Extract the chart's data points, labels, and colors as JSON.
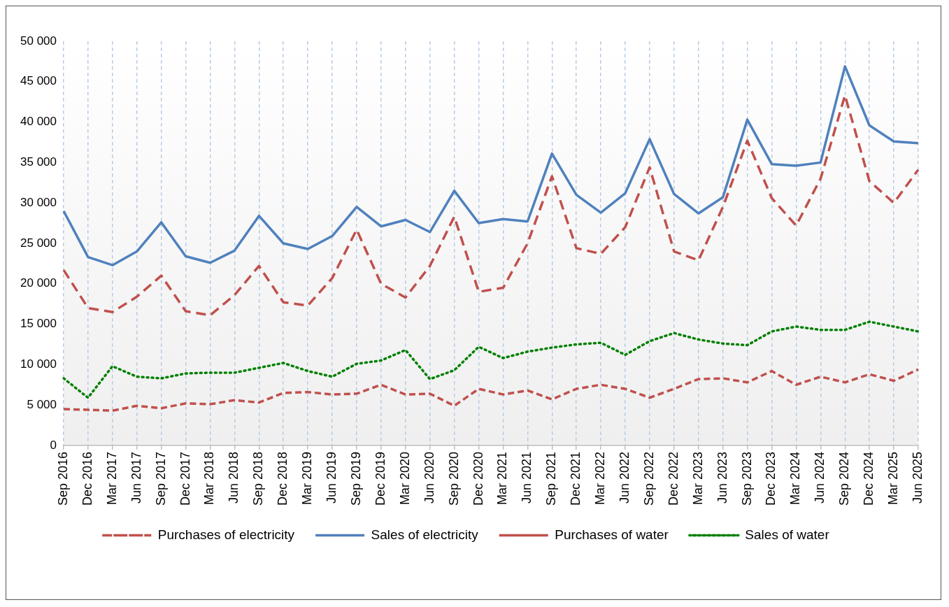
{
  "chart_data": {
    "type": "line",
    "categories": [
      "Sep 2016",
      "Dec 2016",
      "Mar 2017",
      "Jun 2017",
      "Sep 2017",
      "Dec 2017",
      "Mar 2018",
      "Jun 2018",
      "Sep 2018",
      "Dec 2018",
      "Mar 2019",
      "Jun 2019",
      "Sep 2019",
      "Dec 2019",
      "Mar 2020",
      "Jun 2020",
      "Sep 2020",
      "Dec 2020",
      "Mar 2021",
      "Jun 2021",
      "Sep 2021",
      "Dec 2021",
      "Mar 2022",
      "Jun 2022",
      "Sep 2022",
      "Dec 2022",
      "Mar 2023",
      "Jun 2023",
      "Sep 2023",
      "Dec 2023",
      "Mar 2024",
      "Jun 2024",
      "Sep 2024",
      "Dec 2024",
      "Mar 2025",
      "Jun 2025"
    ],
    "series": [
      {
        "name": "Purchases of electricity",
        "color": "#c0504d",
        "line_style": "dashed",
        "values": [
          21700,
          17000,
          16500,
          18400,
          21000,
          16600,
          16100,
          18600,
          22200,
          17700,
          17300,
          20700,
          26700,
          20000,
          18300,
          22200,
          28300,
          19000,
          19500,
          25000,
          33300,
          24400,
          23700,
          27000,
          34400,
          24000,
          22900,
          29500,
          37700,
          30600,
          27200,
          33000,
          43300,
          32700,
          30000,
          34100
        ]
      },
      {
        "name": "Sales of electricity",
        "color": "#4f81bd",
        "line_style": "solid",
        "values": [
          29000,
          23300,
          22300,
          24000,
          27600,
          23400,
          22600,
          24100,
          28400,
          25000,
          24300,
          25900,
          29500,
          27100,
          27900,
          26400,
          31500,
          27500,
          28000,
          27700,
          36100,
          31000,
          28800,
          31200,
          37900,
          31100,
          28700,
          30700,
          40300,
          34800,
          34600,
          35000,
          46900,
          39600,
          37600,
          37400
        ]
      },
      {
        "name": "Purchases of water",
        "color": "#c0504d",
        "line_style": "dashed",
        "values": [
          4500,
          4400,
          4300,
          4900,
          4600,
          5200,
          5100,
          5600,
          5300,
          6500,
          6600,
          6300,
          6400,
          7500,
          6300,
          6400,
          4900,
          7000,
          6300,
          6800,
          5700,
          7000,
          7500,
          7000,
          5900,
          7000,
          8200,
          8300,
          7800,
          9200,
          7500,
          8500,
          7800,
          8800,
          8000,
          9400
        ]
      },
      {
        "name": "Sales of water",
        "color": "#008000",
        "line_style": "dotted",
        "values": [
          8300,
          5900,
          9800,
          8500,
          8300,
          8900,
          9000,
          9000,
          9600,
          10200,
          9200,
          8500,
          10100,
          10500,
          11800,
          8200,
          9300,
          12200,
          10800,
          11600,
          12100,
          12500,
          12700,
          11200,
          12900,
          13900,
          13100,
          12600,
          12400,
          14100,
          14700,
          14300,
          14300,
          15300,
          14700,
          14100
        ]
      }
    ],
    "ylim": [
      0,
      50000
    ],
    "yticks": [
      {
        "value": 0,
        "label": "0"
      },
      {
        "value": 5000,
        "label": "5 000"
      },
      {
        "value": 10000,
        "label": "10 000"
      },
      {
        "value": 15000,
        "label": "15 000"
      },
      {
        "value": 20000,
        "label": "20 000"
      },
      {
        "value": 25000,
        "label": "25 000"
      },
      {
        "value": 30000,
        "label": "30 000"
      },
      {
        "value": 35000,
        "label": "35 000"
      },
      {
        "value": 40000,
        "label": "40 000"
      },
      {
        "value": 45000,
        "label": "45 000"
      },
      {
        "value": 50000,
        "label": "50 000"
      }
    ],
    "grid": "x",
    "legend": "bottom",
    "marker": "none"
  }
}
